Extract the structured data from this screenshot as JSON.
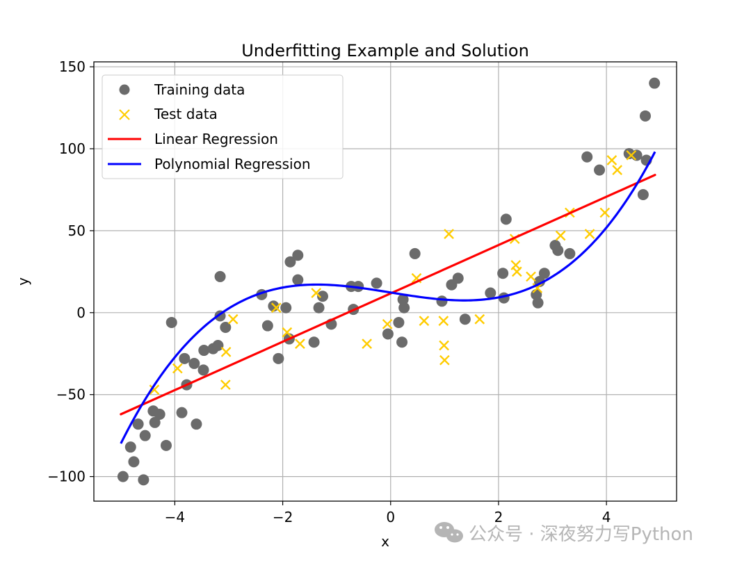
{
  "chart_data": {
    "type": "scatter",
    "title": "Underfitting Example and Solution",
    "xlabel": "x",
    "ylabel": "y",
    "xlim": [
      -5.5,
      5.3
    ],
    "ylim": [
      -115,
      153
    ],
    "xticks": [
      -4,
      -2,
      0,
      2,
      4
    ],
    "yticks": [
      -100,
      -50,
      0,
      50,
      100,
      150
    ],
    "xtick_labels": [
      "−4",
      "−2",
      "0",
      "2",
      "4"
    ],
    "ytick_labels": [
      "−100",
      "−50",
      "0",
      "50",
      "100",
      "150"
    ],
    "grid": true,
    "legend_position": "upper-left",
    "series": [
      {
        "name": "Training data",
        "kind": "scatter",
        "marker": "circle",
        "color": "#6b6b6b",
        "points": [
          [
            -4.96,
            -100
          ],
          [
            -4.82,
            -82
          ],
          [
            -4.76,
            -91
          ],
          [
            -4.68,
            -68
          ],
          [
            -4.58,
            -102
          ],
          [
            -4.55,
            -75
          ],
          [
            -4.4,
            -60
          ],
          [
            -4.37,
            -67
          ],
          [
            -4.28,
            -62
          ],
          [
            -4.16,
            -81
          ],
          [
            -4.06,
            -6
          ],
          [
            -3.87,
            -61
          ],
          [
            -3.82,
            -28
          ],
          [
            -3.78,
            -44
          ],
          [
            -3.64,
            -31
          ],
          [
            -3.6,
            -68
          ],
          [
            -3.47,
            -35
          ],
          [
            -3.46,
            -23
          ],
          [
            -3.29,
            -22
          ],
          [
            -3.2,
            -20
          ],
          [
            -3.16,
            -2
          ],
          [
            -3.16,
            22
          ],
          [
            -3.06,
            -9
          ],
          [
            -2.39,
            11
          ],
          [
            -2.28,
            -8
          ],
          [
            -2.17,
            4
          ],
          [
            -2.08,
            -28
          ],
          [
            -1.94,
            3
          ],
          [
            -1.88,
            -16
          ],
          [
            -1.86,
            31
          ],
          [
            -1.72,
            20
          ],
          [
            -1.72,
            35
          ],
          [
            -1.42,
            -18
          ],
          [
            -1.33,
            3
          ],
          [
            -1.26,
            10
          ],
          [
            -1.1,
            -7
          ],
          [
            -0.73,
            16
          ],
          [
            -0.69,
            2
          ],
          [
            -0.6,
            16
          ],
          [
            -0.26,
            18
          ],
          [
            -0.05,
            -13
          ],
          [
            0.15,
            -6
          ],
          [
            0.21,
            -18
          ],
          [
            0.23,
            8
          ],
          [
            0.25,
            3
          ],
          [
            0.45,
            36
          ],
          [
            0.95,
            7
          ],
          [
            1.13,
            17
          ],
          [
            1.25,
            21
          ],
          [
            1.38,
            -4
          ],
          [
            1.85,
            12
          ],
          [
            2.08,
            24
          ],
          [
            2.1,
            9
          ],
          [
            2.14,
            57
          ],
          [
            2.7,
            11
          ],
          [
            2.73,
            6
          ],
          [
            2.76,
            19
          ],
          [
            2.85,
            24
          ],
          [
            3.05,
            41
          ],
          [
            3.1,
            38
          ],
          [
            3.32,
            36
          ],
          [
            3.64,
            95
          ],
          [
            3.87,
            87
          ],
          [
            4.42,
            97
          ],
          [
            4.56,
            96
          ],
          [
            4.68,
            72
          ],
          [
            4.72,
            120
          ],
          [
            4.74,
            93
          ],
          [
            4.89,
            140
          ]
        ]
      },
      {
        "name": "Test data",
        "kind": "scatter",
        "marker": "x",
        "color": "#ffcc00",
        "points": [
          [
            -4.38,
            -47
          ],
          [
            -3.95,
            -34
          ],
          [
            -3.05,
            -24
          ],
          [
            -3.06,
            -44
          ],
          [
            -2.92,
            -4
          ],
          [
            -2.12,
            3
          ],
          [
            -1.92,
            -12
          ],
          [
            -1.68,
            -19
          ],
          [
            -1.38,
            12
          ],
          [
            -0.44,
            -19
          ],
          [
            -0.06,
            -7
          ],
          [
            0.48,
            21
          ],
          [
            0.62,
            -5
          ],
          [
            0.98,
            -5
          ],
          [
            0.99,
            -20
          ],
          [
            1.0,
            -29
          ],
          [
            1.08,
            48
          ],
          [
            1.65,
            -4
          ],
          [
            2.3,
            45
          ],
          [
            2.32,
            29
          ],
          [
            2.34,
            25
          ],
          [
            2.6,
            22
          ],
          [
            2.72,
            15
          ],
          [
            3.15,
            47
          ],
          [
            3.32,
            61
          ],
          [
            3.69,
            48
          ],
          [
            3.97,
            61
          ],
          [
            4.1,
            93
          ],
          [
            4.2,
            87
          ],
          [
            4.46,
            96
          ]
        ]
      },
      {
        "name": "Linear Regression",
        "kind": "line",
        "color": "#ff0000",
        "x": [
          -5.0,
          4.9
        ],
        "y": [
          -62,
          84
        ]
      },
      {
        "name": "Polynomial Regression",
        "kind": "line",
        "color": "#0000ff",
        "poly_coefficients": [
          12.28,
          -5.31,
          0.004,
          0.95
        ],
        "x_range": [
          -5.0,
          4.9
        ]
      }
    ]
  },
  "watermark": {
    "text": "公众号 · 深夜努力写Python"
  }
}
